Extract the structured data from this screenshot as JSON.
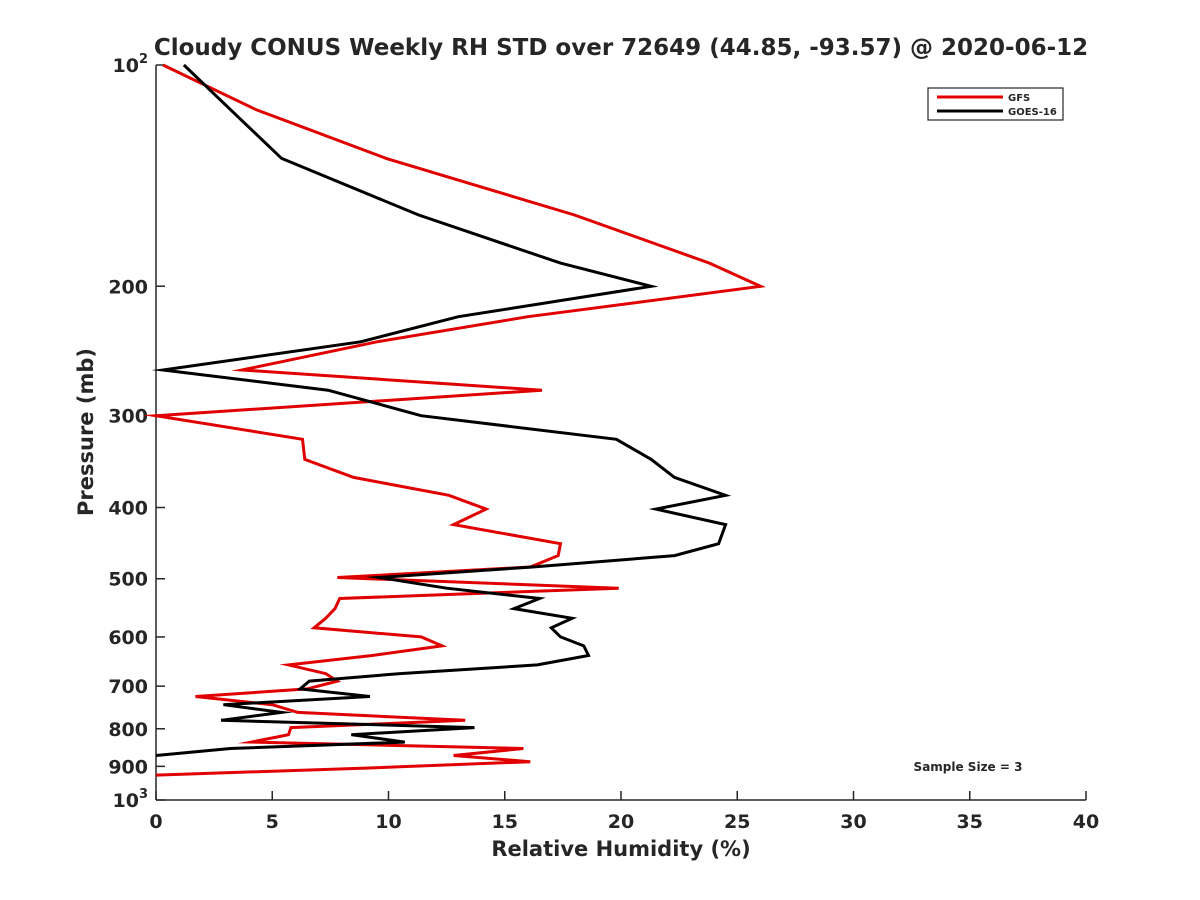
{
  "chart_data": {
    "type": "line",
    "title": "Cloudy CONUS Weekly RH STD over 72649 (44.85, -93.57) @ 2020-06-12",
    "xlabel": "Relative Humidity (%)",
    "ylabel": "Pressure (mb)",
    "xlim": [
      0,
      40
    ],
    "ylim": [
      100,
      1000
    ],
    "y_scale": "log",
    "y_reversed": true,
    "x_ticks": [
      0,
      5,
      10,
      15,
      20,
      25,
      30,
      35,
      40
    ],
    "x_tick_labels": [
      "0",
      "5",
      "10",
      "15",
      "20",
      "25",
      "30",
      "35",
      "40"
    ],
    "y_ticks": [
      100,
      200,
      300,
      400,
      500,
      600,
      700,
      800,
      900,
      1000
    ],
    "y_tick_labels": [
      {
        "base": "10",
        "exp": "2"
      },
      {
        "base": "200"
      },
      {
        "base": "300"
      },
      {
        "base": "400"
      },
      {
        "base": "500"
      },
      {
        "base": "600"
      },
      {
        "base": "700"
      },
      {
        "base": "800"
      },
      {
        "base": "900"
      },
      {
        "base": "10",
        "exp": "3"
      }
    ],
    "grid": false,
    "legend_position": "top-right",
    "annotation": "Sample Size = 3",
    "series": [
      {
        "name": "GFS",
        "color": "#e00000",
        "points": [
          [
            0.3,
            100
          ],
          [
            4.3,
            115
          ],
          [
            9.9,
            134
          ],
          [
            18.0,
            160
          ],
          [
            23.8,
            186
          ],
          [
            26.0,
            200
          ],
          [
            16.0,
            220
          ],
          [
            9.5,
            238
          ],
          [
            3.7,
            260
          ],
          [
            16.6,
            277
          ],
          [
            0.0,
            300
          ],
          [
            6.3,
            323
          ],
          [
            6.4,
            344
          ],
          [
            8.5,
            364
          ],
          [
            12.6,
            385
          ],
          [
            14.2,
            402
          ],
          [
            12.8,
            422
          ],
          [
            17.4,
            448
          ],
          [
            17.3,
            465
          ],
          [
            16.1,
            482
          ],
          [
            7.8,
            498
          ],
          [
            19.9,
            515
          ],
          [
            7.9,
            532
          ],
          [
            7.7,
            549
          ],
          [
            7.3,
            566
          ],
          [
            6.8,
            583
          ],
          [
            11.4,
            600
          ],
          [
            12.3,
            617
          ],
          [
            9.3,
            636
          ],
          [
            5.7,
            655
          ],
          [
            7.3,
            673
          ],
          [
            7.8,
            689
          ],
          [
            6.5,
            706
          ],
          [
            1.7,
            723
          ],
          [
            5.0,
            742
          ],
          [
            6.1,
            760
          ],
          [
            13.3,
            779
          ],
          [
            5.8,
            797
          ],
          [
            5.7,
            815
          ],
          [
            4.1,
            834
          ],
          [
            15.8,
            851
          ],
          [
            12.8,
            870
          ],
          [
            16.1,
            887
          ],
          [
            9.0,
            905
          ],
          [
            0.0,
            925
          ]
        ]
      },
      {
        "name": "GOES-16",
        "color": "#000000",
        "points": [
          [
            1.2,
            100
          ],
          [
            3.2,
            115
          ],
          [
            5.4,
            134
          ],
          [
            11.3,
            160
          ],
          [
            17.4,
            186
          ],
          [
            21.3,
            200
          ],
          [
            13.0,
            220
          ],
          [
            8.8,
            238
          ],
          [
            0.3,
            260
          ],
          [
            7.4,
            277
          ],
          [
            11.4,
            300
          ],
          [
            19.8,
            323
          ],
          [
            21.3,
            344
          ],
          [
            22.3,
            364
          ],
          [
            24.5,
            385
          ],
          [
            21.5,
            402
          ],
          [
            24.5,
            422
          ],
          [
            24.2,
            448
          ],
          [
            22.3,
            465
          ],
          [
            16.2,
            482
          ],
          [
            9.6,
            498
          ],
          [
            12.5,
            515
          ],
          [
            16.5,
            532
          ],
          [
            15.4,
            549
          ],
          [
            17.9,
            566
          ],
          [
            17.0,
            583
          ],
          [
            17.4,
            600
          ],
          [
            18.4,
            617
          ],
          [
            18.6,
            636
          ],
          [
            16.4,
            655
          ],
          [
            10.5,
            673
          ],
          [
            6.6,
            689
          ],
          [
            6.2,
            706
          ],
          [
            9.2,
            723
          ],
          [
            2.9,
            742
          ],
          [
            5.4,
            760
          ],
          [
            2.8,
            779
          ],
          [
            13.7,
            797
          ],
          [
            8.4,
            815
          ],
          [
            10.7,
            834
          ],
          [
            3.2,
            851
          ],
          [
            0.0,
            870
          ]
        ]
      }
    ]
  }
}
